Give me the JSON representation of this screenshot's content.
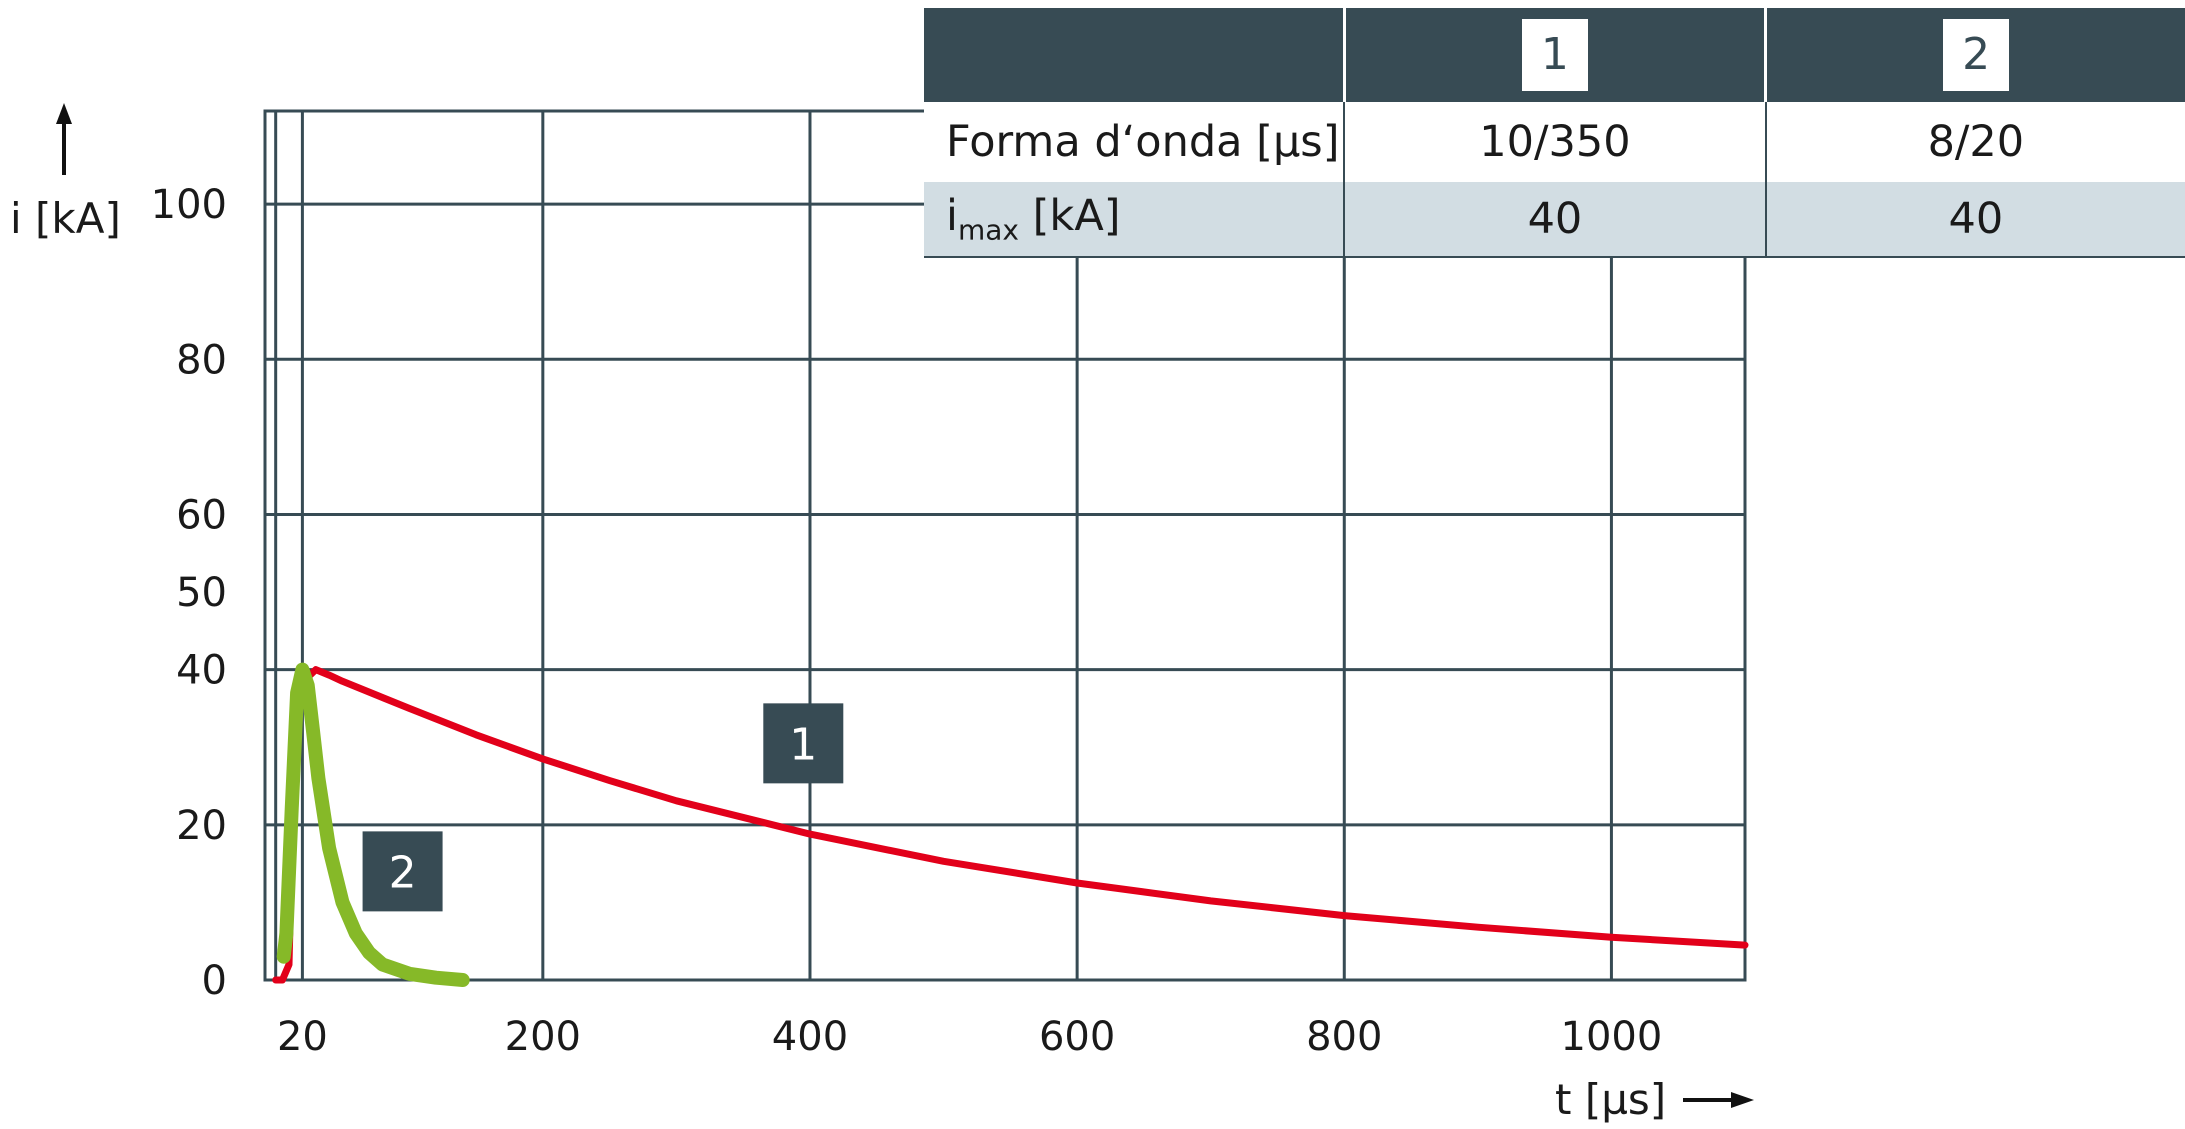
{
  "chart_data": {
    "type": "line",
    "ylabel": "i [kA]",
    "xlabel": "t [µs]",
    "xlim": [
      -8,
      1100
    ],
    "ylim": [
      0,
      112
    ],
    "y_ticks": [
      "0",
      "20",
      "40",
      "50",
      "60",
      "80",
      "100"
    ],
    "y_tick_values": [
      0,
      20,
      40,
      50,
      60,
      80,
      100
    ],
    "x_ticks": [
      "20",
      "200",
      "400",
      "600",
      "800",
      "1000"
    ],
    "x_tick_values": [
      20,
      200,
      400,
      600,
      800,
      1000
    ],
    "grid": true,
    "series": [
      {
        "name": "1",
        "color": "#e2001a",
        "x": [
          0,
          5,
          10,
          14,
          18,
          24,
          30,
          40,
          50,
          100,
          150,
          200,
          250,
          300,
          400,
          500,
          600,
          700,
          800,
          900,
          1000,
          1100
        ],
        "y": [
          0,
          0,
          2,
          30,
          36,
          39,
          40,
          39.3,
          38.5,
          35,
          31.6,
          28.5,
          25.7,
          23.1,
          18.8,
          15.3,
          12.5,
          10.2,
          8.3,
          6.8,
          5.5,
          4.5
        ]
      },
      {
        "name": "2",
        "color": "#86b928",
        "x": [
          6,
          8,
          12,
          16,
          20,
          24,
          28,
          32,
          40,
          50,
          60,
          70,
          80,
          100,
          120,
          140
        ],
        "y": [
          3,
          6,
          22,
          37,
          40,
          38,
          32,
          26,
          17,
          10,
          6,
          3.5,
          2,
          0.8,
          0.3,
          0
        ]
      }
    ],
    "annotations": [
      {
        "text": "1",
        "x": 395,
        "y": 30.5
      },
      {
        "text": "2",
        "x": 95,
        "y": 14
      }
    ]
  },
  "table": {
    "headers": [
      "",
      "1",
      "2"
    ],
    "rows": [
      {
        "label": "Forma d‘onda [µs]",
        "values": [
          "10/350",
          "8/20"
        ]
      },
      {
        "label_main": "i",
        "label_sub": "max",
        "label_unit": " [kA]",
        "values": [
          "40",
          "40"
        ]
      }
    ]
  },
  "colors": {
    "dark": "#374b54",
    "grid": "#374b54",
    "row_shade": "#d2dde3"
  }
}
